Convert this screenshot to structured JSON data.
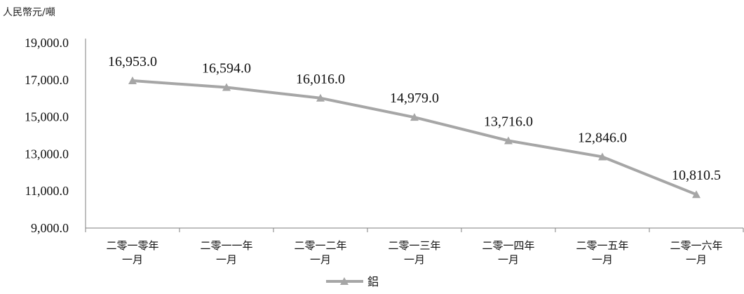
{
  "chart_data": {
    "type": "line",
    "ylabel": "人民幣元/噸",
    "categories": [
      [
        "二零一零年",
        "一月"
      ],
      [
        "二零一一年",
        "一月"
      ],
      [
        "二零一二年",
        "一月"
      ],
      [
        "二零一三年",
        "一月"
      ],
      [
        "二零一四年",
        "一月"
      ],
      [
        "二零一五年",
        "一月"
      ],
      [
        "二零一六年",
        "一月"
      ]
    ],
    "series": [
      {
        "name": "鋁",
        "color": "#a6a6a6",
        "marker": "triangle",
        "values": [
          16953.0,
          16594.0,
          16016.0,
          14979.0,
          13716.0,
          12846.0,
          10810.5
        ],
        "labels": [
          "16,953.0",
          "16,594.0",
          "16,016.0",
          "14,979.0",
          "13,716.0",
          "12,846.0",
          "10,810.5"
        ]
      }
    ],
    "ylim": [
      9000,
      19000
    ],
    "yticks": [
      9000,
      11000,
      13000,
      15000,
      17000,
      19000
    ],
    "ytick_labels": [
      "9,000.0",
      "11,000.0",
      "13,000.0",
      "15,000.0",
      "17,000.0",
      "19,000.0"
    ],
    "grid": false,
    "legend": "bottom-center"
  }
}
